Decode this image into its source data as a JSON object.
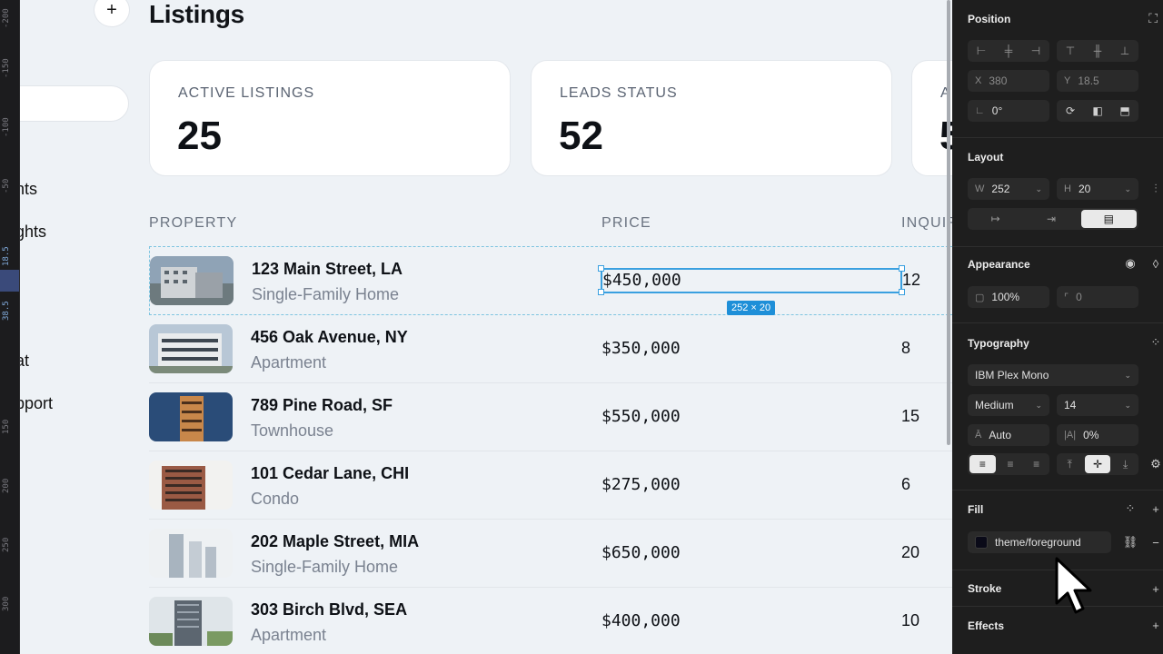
{
  "ruler": {
    "ticks": [
      "-200",
      "-150",
      "-100",
      "-50",
      "18.5",
      "38.5",
      "150",
      "200",
      "250",
      "300"
    ]
  },
  "canvas": {
    "add_label": "+",
    "title": "Listings",
    "nav": [
      "nts",
      "ghts",
      "at",
      "pport"
    ],
    "cards": [
      {
        "label": "ACTIVE LISTINGS",
        "value": "25"
      },
      {
        "label": "LEADS STATUS",
        "value": "52"
      },
      {
        "label": "A",
        "value": "5"
      }
    ],
    "table": {
      "headers": {
        "property": "PROPERTY",
        "price": "PRICE",
        "inquiries": "INQUIR"
      },
      "rows": [
        {
          "address": "123 Main Street, LA",
          "type": "Single-Family Home",
          "price": "$450,000",
          "inquiries": "12"
        },
        {
          "address": "456 Oak Avenue, NY",
          "type": "Apartment",
          "price": "$350,000",
          "inquiries": "8"
        },
        {
          "address": "789 Pine Road, SF",
          "type": "Townhouse",
          "price": "$550,000",
          "inquiries": "15"
        },
        {
          "address": "101 Cedar Lane, CHI",
          "type": "Condo",
          "price": "$275,000",
          "inquiries": "6"
        },
        {
          "address": "202 Maple Street, MIA",
          "type": "Single-Family Home",
          "price": "$650,000",
          "inquiries": "20"
        },
        {
          "address": "303 Birch Blvd, SEA",
          "type": "Apartment",
          "price": "$400,000",
          "inquiries": "10"
        }
      ]
    },
    "selection_size": "252 × 20"
  },
  "panel": {
    "position": {
      "title": "Position",
      "x_label": "X",
      "x": "380",
      "y_label": "Y",
      "y": "18.5",
      "rotation": "0°"
    },
    "layout": {
      "title": "Layout",
      "w_label": "W",
      "w": "252",
      "h_label": "H",
      "h": "20"
    },
    "appearance": {
      "title": "Appearance",
      "opacity": "100%",
      "radius": "0"
    },
    "typography": {
      "title": "Typography",
      "font": "IBM Plex Mono",
      "weight": "Medium",
      "size": "14",
      "line_height": "Auto",
      "letter_spacing": "0%"
    },
    "fill": {
      "title": "Fill",
      "token": "theme/foreground",
      "color": "#0a0a18"
    },
    "stroke": {
      "title": "Stroke"
    },
    "effects": {
      "title": "Effects"
    }
  },
  "colors": {
    "accent": "#3aa0e0",
    "panel_bg": "#1e1e1e",
    "canvas_bg": "#eef2f6"
  }
}
